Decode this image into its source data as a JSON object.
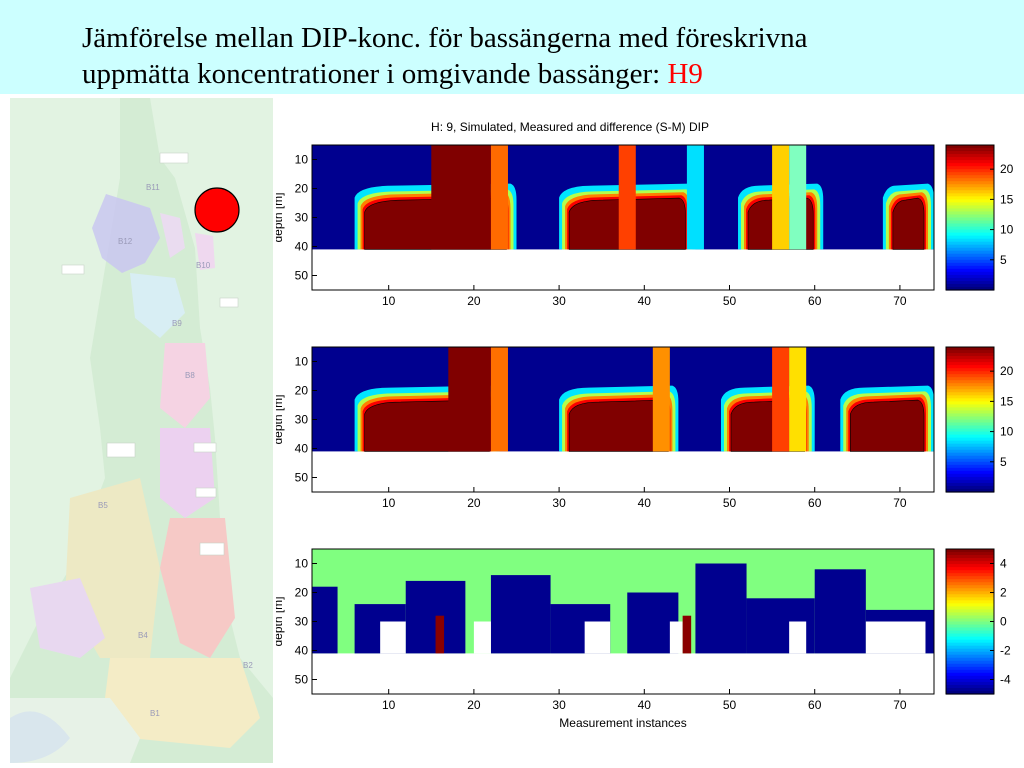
{
  "slide": {
    "title_line1": "Jämförelse mellan DIP-konc. för bassängerna med föreskrivna",
    "title_line2": "uppmätta koncentrationer i omgivande bassänger: ",
    "title_highlight": "H9",
    "title_band_color": "#ccffff",
    "highlight_color": "#ff0000"
  },
  "map": {
    "marker_color": "#ff0000",
    "basin_labels": [
      "B12",
      "B11",
      "B10",
      "B9",
      "B8",
      "B5",
      "B4",
      "B2",
      "B1"
    ]
  },
  "chart_data": [
    {
      "type": "heatmap",
      "title": "H: 9, Simulated, Measured and difference (S-M) DIP",
      "ylabel": "depth [m]",
      "xlabel": "",
      "xlim": [
        1,
        74
      ],
      "ylim": [
        55,
        5
      ],
      "xticks": [
        10,
        20,
        30,
        40,
        50,
        60,
        70
      ],
      "yticks": [
        10,
        20,
        30,
        40,
        50
      ],
      "colorbar_ticks": [
        5,
        10,
        15,
        20
      ],
      "colorbar_range": [
        0,
        24
      ],
      "blocks": [
        [
          6,
          25
        ],
        [
          30,
          46
        ],
        [
          51,
          61
        ],
        [
          68,
          74
        ]
      ]
    },
    {
      "type": "heatmap",
      "title": "",
      "ylabel": "depth [m]",
      "xlabel": "",
      "xlim": [
        1,
        74
      ],
      "ylim": [
        55,
        5
      ],
      "xticks": [
        10,
        20,
        30,
        40,
        50,
        60,
        70
      ],
      "yticks": [
        10,
        20,
        30,
        40,
        50
      ],
      "colorbar_ticks": [
        5,
        10,
        15,
        20
      ],
      "colorbar_range": [
        0,
        24
      ],
      "blocks": [
        [
          6,
          23
        ],
        [
          30,
          44
        ],
        [
          49,
          60
        ],
        [
          63,
          74
        ]
      ]
    },
    {
      "type": "heatmap",
      "title": "",
      "ylabel": "depth [m]",
      "xlabel": "Measurement instances",
      "xlim": [
        1,
        74
      ],
      "ylim": [
        55,
        5
      ],
      "xticks": [
        10,
        20,
        30,
        40,
        50,
        60,
        70
      ],
      "yticks": [
        10,
        20,
        30,
        40,
        50
      ],
      "colorbar_ticks": [
        4,
        2,
        0,
        -2,
        -4
      ],
      "colorbar_range": [
        -5,
        5
      ],
      "hotspots": [
        16,
        45
      ]
    }
  ]
}
